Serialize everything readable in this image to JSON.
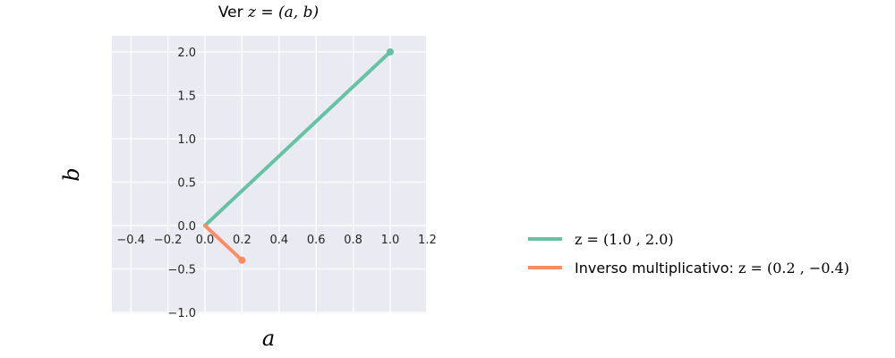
{
  "chart_data": {
    "type": "line",
    "title_prefix": "Ver ",
    "title_math": "z = (a, b)",
    "xlabel": "a",
    "ylabel": "b",
    "xlim": [
      -0.5,
      1.2
    ],
    "ylim": [
      -1.0,
      2.2
    ],
    "xticks": [
      -0.4,
      -0.2,
      0.0,
      0.2,
      0.4,
      0.6,
      0.8,
      1.0,
      1.2
    ],
    "xtick_labels": [
      "−0.4",
      "−0.2",
      "0.0",
      "0.2",
      "0.4",
      "0.6",
      "0.8",
      "1.0",
      "1.2"
    ],
    "yticks": [
      -1.0,
      -0.5,
      0.0,
      0.5,
      1.0,
      1.5,
      2.0
    ],
    "ytick_labels": [
      "−1.0",
      "−0.5",
      "0.0",
      "0.5",
      "1.0",
      "1.5",
      "2.0"
    ],
    "grid": true,
    "legend_position": "right",
    "series": [
      {
        "legend_plain": "",
        "legend_math": "z = (1.0 , 2.0)",
        "color": "#66c2a5",
        "x": [
          0.0,
          1.0
        ],
        "y": [
          0.0,
          2.0
        ]
      },
      {
        "legend_plain": "Inverso multiplicativo: ",
        "legend_math": "z = (0.2 , −0.4)",
        "color": "#fc8d62",
        "x": [
          0.0,
          0.2
        ],
        "y": [
          0.0,
          -0.4
        ]
      }
    ]
  }
}
